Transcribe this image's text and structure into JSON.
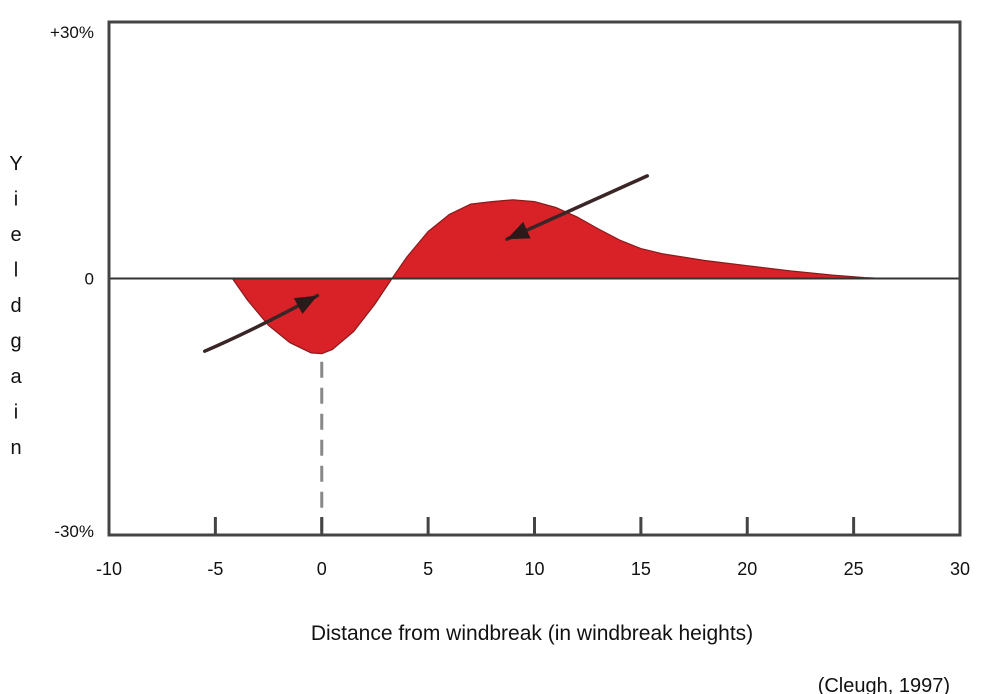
{
  "chart_data": {
    "type": "area",
    "title": "",
    "xlabel": "Distance from windbreak (in windbreak heights)",
    "ylabel": "Yieldgain",
    "credit": "(Cleugh, 1997)",
    "xlim": [
      -10,
      30
    ],
    "ylim": [
      -30,
      30
    ],
    "x_ticks": [
      -10,
      -5,
      0,
      5,
      10,
      15,
      20,
      25,
      30
    ],
    "x_tick_labels": [
      "-10",
      "-5",
      "0",
      "5",
      "10",
      "15",
      "20",
      "25",
      "30"
    ],
    "y_ticks": [
      30,
      0,
      -30
    ],
    "y_tick_labels": [
      "+30%",
      "0",
      "-30%"
    ],
    "grid": false,
    "fill_color": "#d92128",
    "series": [
      {
        "x": [
          -4.2,
          -3.5,
          -2.5,
          -1.5,
          -0.5,
          0,
          0.5,
          1.5,
          2.5,
          3.3,
          4,
          5,
          6,
          7,
          8,
          9,
          10,
          11,
          12,
          13,
          14,
          15,
          16,
          18,
          20,
          22,
          24,
          25.5,
          26.5
        ],
        "y": [
          0,
          -2.5,
          -5.5,
          -7.5,
          -8.7,
          -8.8,
          -8.3,
          -6.2,
          -3,
          0,
          2.5,
          5.5,
          7.5,
          8.7,
          9,
          9.2,
          9,
          8.3,
          7.2,
          5.8,
          4.5,
          3.5,
          2.9,
          2.1,
          1.5,
          0.9,
          0.4,
          0.1,
          0
        ]
      }
    ],
    "annotations": [
      {
        "kind": "arrow",
        "from": [
          -5.5,
          -8.5
        ],
        "to": [
          -0.2,
          -2
        ]
      },
      {
        "kind": "arrow",
        "from": [
          15.3,
          12
        ],
        "to": [
          8.7,
          4.6
        ]
      },
      {
        "kind": "dashed-line",
        "from": [
          0,
          -8.8
        ],
        "to": [
          0,
          -30
        ]
      }
    ]
  }
}
